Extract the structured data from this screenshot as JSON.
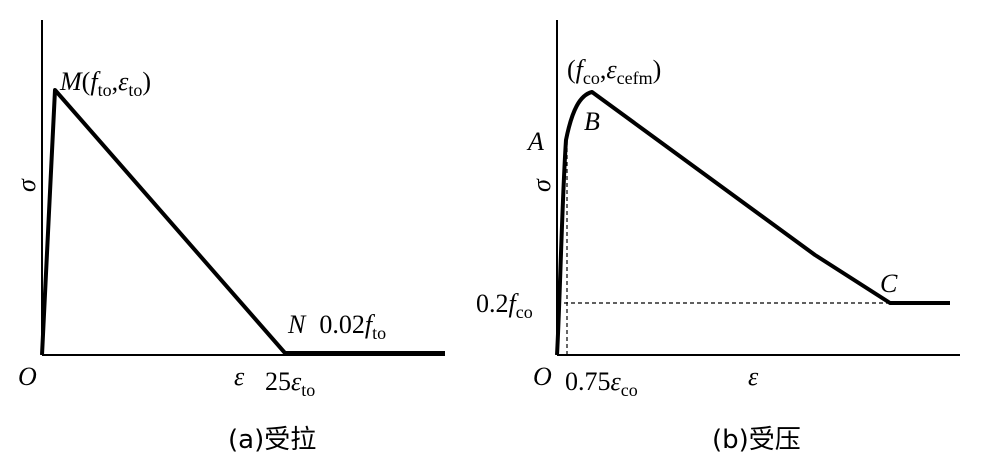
{
  "panels": [
    {
      "peak_label": [
        "M",
        "(",
        "f",
        "to",
        ",",
        "ε",
        "to",
        ")"
      ],
      "y_axis": "σ",
      "origin": "O",
      "x_axis": "ε",
      "strain_label": [
        "25",
        "ε",
        "to"
      ],
      "end_label": [
        "N",
        "0.02",
        "f",
        "to"
      ],
      "caption": "(a)受拉"
    },
    {
      "peak_label": [
        "(",
        "f",
        "co",
        ",",
        "ε",
        "cefm",
        ")"
      ],
      "point_a": "A",
      "point_b": "B",
      "point_c": "C",
      "y_axis": "σ",
      "origin": "O",
      "x_axis": "ε",
      "strain_label": [
        "0.75",
        "ε",
        "co"
      ],
      "residual_label": [
        "0.2",
        "f",
        "co"
      ],
      "caption": "(b)受压"
    }
  ]
}
